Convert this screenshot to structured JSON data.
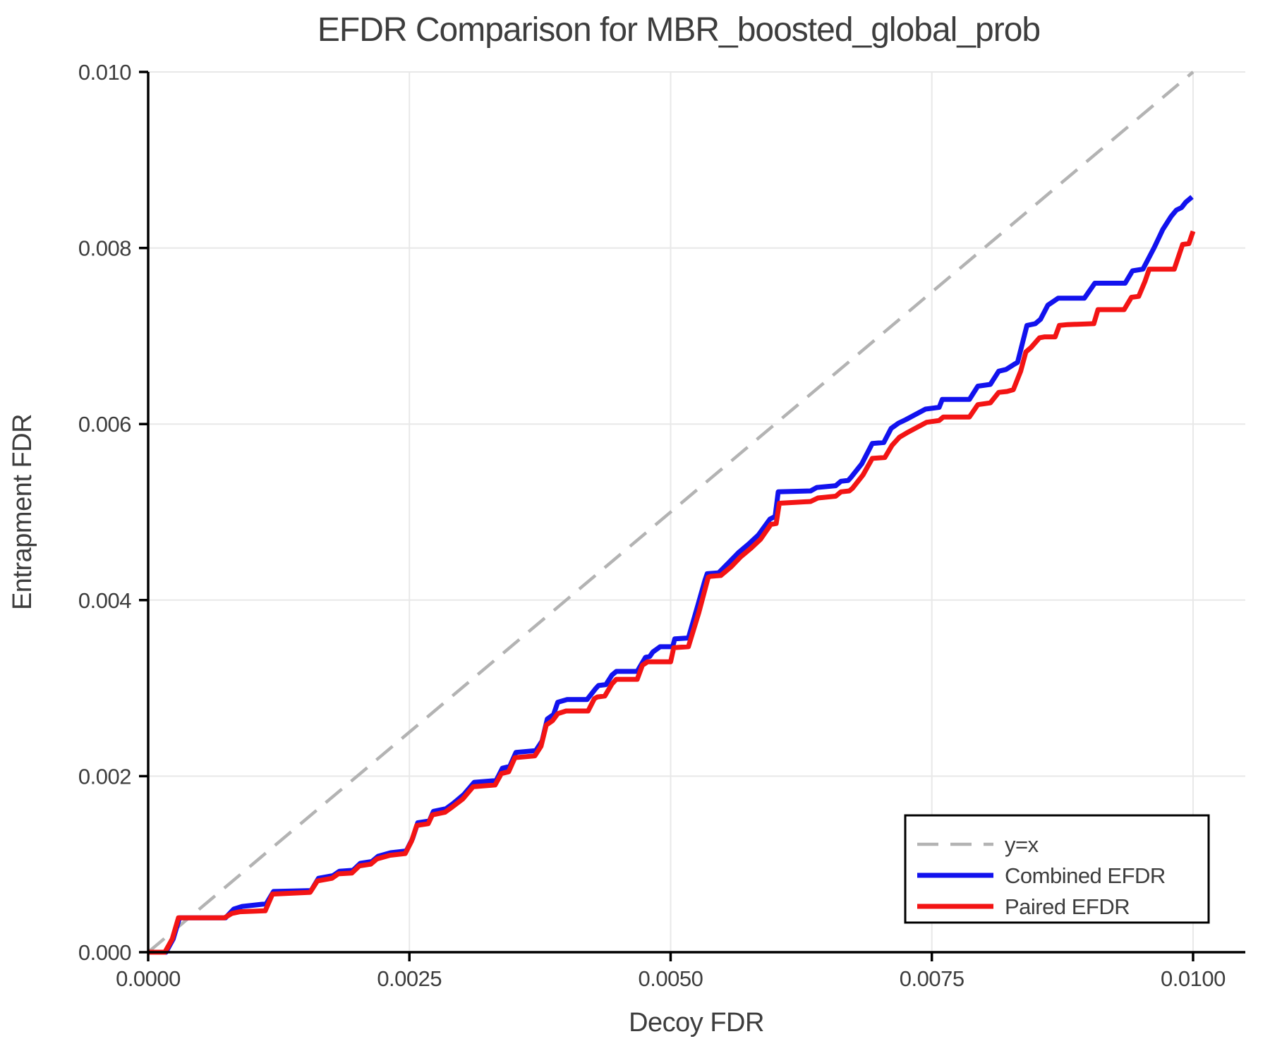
{
  "colors": {
    "background": "#ffffff",
    "text": "#3d3d3d",
    "axis": "#000000",
    "grid": "#e8e8e8",
    "reference_gray": "#b3b3b3",
    "combined_blue": "#1212ee",
    "paired_red": "#f31414"
  },
  "chart_data": {
    "type": "line",
    "title": "EFDR Comparison for MBR_boosted_global_prob",
    "xlabel": "Decoy FDR",
    "ylabel": "Entrapment FDR",
    "xlim": [
      0.0,
      0.0105
    ],
    "ylim": [
      0.0,
      0.01
    ],
    "grid": true,
    "xticks": {
      "values": [
        0.0,
        0.0025,
        0.005,
        0.0075,
        0.01
      ],
      "labels": [
        "0.0000",
        "0.0025",
        "0.0050",
        "0.0075",
        "0.0100"
      ]
    },
    "yticks": {
      "values": [
        0.0,
        0.002,
        0.004,
        0.006,
        0.008,
        0.01
      ],
      "labels": [
        "0.000",
        "0.002",
        "0.004",
        "0.006",
        "0.008",
        "0.010"
      ]
    },
    "legend": {
      "position": "lower right",
      "entries": [
        {
          "label": "y=x",
          "color": "#b3b3b3",
          "dash": "30 17",
          "width": 4.5
        },
        {
          "label": "Combined EFDR",
          "color": "#1212ee",
          "dash": "",
          "width": 7
        },
        {
          "label": "Paired EFDR",
          "color": "#f31414",
          "dash": "",
          "width": 7
        }
      ]
    },
    "series": [
      {
        "name": "y=x",
        "color": "#b3b3b3",
        "width": 4.5,
        "dash": "30 17",
        "points": [
          [
            0.0,
            0.0
          ],
          [
            0.01,
            0.01
          ]
        ]
      },
      {
        "name": "Combined EFDR",
        "color": "#1212ee",
        "width": 7,
        "dash": "",
        "points": [
          [
            0.0,
            0.0
          ],
          [
            0.00017,
            0.0
          ],
          [
            0.00024,
            0.00015
          ],
          [
            0.0003,
            0.00039
          ],
          [
            0.00074,
            0.00039
          ],
          [
            0.00082,
            0.00049
          ],
          [
            0.0009,
            0.00052
          ],
          [
            0.00113,
            0.00055
          ],
          [
            0.0012,
            0.00069
          ],
          [
            0.00156,
            0.0007
          ],
          [
            0.00163,
            0.00084
          ],
          [
            0.00177,
            0.00087
          ],
          [
            0.00183,
            0.00092
          ],
          [
            0.00196,
            0.00093
          ],
          [
            0.00203,
            0.00101
          ],
          [
            0.00214,
            0.00103
          ],
          [
            0.0022,
            0.00109
          ],
          [
            0.00232,
            0.00113
          ],
          [
            0.00247,
            0.00115
          ],
          [
            0.00253,
            0.00129
          ],
          [
            0.00258,
            0.00147
          ],
          [
            0.00269,
            0.00149
          ],
          [
            0.00273,
            0.0016
          ],
          [
            0.00285,
            0.00163
          ],
          [
            0.00292,
            0.00169
          ],
          [
            0.00302,
            0.00179
          ],
          [
            0.00312,
            0.00193
          ],
          [
            0.00333,
            0.00195
          ],
          [
            0.00339,
            0.00209
          ],
          [
            0.00346,
            0.00211
          ],
          [
            0.00352,
            0.00227
          ],
          [
            0.00371,
            0.00229
          ],
          [
            0.00377,
            0.0024
          ],
          [
            0.00382,
            0.00265
          ],
          [
            0.00388,
            0.0027
          ],
          [
            0.00392,
            0.00284
          ],
          [
            0.00401,
            0.00287
          ],
          [
            0.0042,
            0.00287
          ],
          [
            0.00428,
            0.00299
          ],
          [
            0.00431,
            0.00303
          ],
          [
            0.00438,
            0.00304
          ],
          [
            0.00444,
            0.00315
          ],
          [
            0.00448,
            0.00319
          ],
          [
            0.00468,
            0.00319
          ],
          [
            0.00476,
            0.00335
          ],
          [
            0.0048,
            0.00336
          ],
          [
            0.00483,
            0.00341
          ],
          [
            0.0049,
            0.00347
          ],
          [
            0.00502,
            0.00347
          ],
          [
            0.00504,
            0.00356
          ],
          [
            0.00517,
            0.00357
          ],
          [
            0.00526,
            0.00394
          ],
          [
            0.00533,
            0.00423
          ],
          [
            0.00535,
            0.0043
          ],
          [
            0.00546,
            0.00431
          ],
          [
            0.00556,
            0.00443
          ],
          [
            0.00565,
            0.00454
          ],
          [
            0.00575,
            0.00464
          ],
          [
            0.00584,
            0.00474
          ],
          [
            0.00595,
            0.00492
          ],
          [
            0.006,
            0.00495
          ],
          [
            0.00603,
            0.00523
          ],
          [
            0.00634,
            0.00524
          ],
          [
            0.0064,
            0.00528
          ],
          [
            0.00658,
            0.0053
          ],
          [
            0.00663,
            0.00535
          ],
          [
            0.0067,
            0.00536
          ],
          [
            0.00673,
            0.0054
          ],
          [
            0.00683,
            0.00555
          ],
          [
            0.00693,
            0.00578
          ],
          [
            0.00704,
            0.00579
          ],
          [
            0.00711,
            0.00595
          ],
          [
            0.00718,
            0.00601
          ],
          [
            0.00725,
            0.00605
          ],
          [
            0.00744,
            0.00617
          ],
          [
            0.00757,
            0.00619
          ],
          [
            0.0076,
            0.00628
          ],
          [
            0.00786,
            0.00628
          ],
          [
            0.00794,
            0.00643
          ],
          [
            0.00806,
            0.00645
          ],
          [
            0.00814,
            0.0066
          ],
          [
            0.00821,
            0.00662
          ],
          [
            0.00829,
            0.00668
          ],
          [
            0.00832,
            0.0067
          ],
          [
            0.00841,
            0.00712
          ],
          [
            0.00849,
            0.00714
          ],
          [
            0.00854,
            0.00719
          ],
          [
            0.00861,
            0.00735
          ],
          [
            0.00871,
            0.00743
          ],
          [
            0.00896,
            0.00743
          ],
          [
            0.00906,
            0.0076
          ],
          [
            0.00935,
            0.0076
          ],
          [
            0.00942,
            0.00774
          ],
          [
            0.00952,
            0.00776
          ],
          [
            0.00963,
            0.00801
          ],
          [
            0.00971,
            0.00821
          ],
          [
            0.00979,
            0.00836
          ],
          [
            0.00984,
            0.00843
          ],
          [
            0.00989,
            0.00846
          ],
          [
            0.00993,
            0.00852
          ],
          [
            0.00999,
            0.00858
          ]
        ]
      },
      {
        "name": "Paired EFDR",
        "color": "#f31414",
        "width": 7,
        "dash": "",
        "points": [
          [
            0.0,
            0.0
          ],
          [
            0.00016,
            0.0
          ],
          [
            0.00023,
            0.00015
          ],
          [
            0.00029,
            0.00039
          ],
          [
            0.00073,
            0.00039
          ],
          [
            0.0008,
            0.00044
          ],
          [
            0.00088,
            0.00046
          ],
          [
            0.00112,
            0.00047
          ],
          [
            0.00119,
            0.00066
          ],
          [
            0.00155,
            0.00068
          ],
          [
            0.00162,
            0.00081
          ],
          [
            0.00176,
            0.00084
          ],
          [
            0.00182,
            0.00089
          ],
          [
            0.00195,
            0.0009
          ],
          [
            0.00202,
            0.00098
          ],
          [
            0.00213,
            0.001
          ],
          [
            0.00219,
            0.00106
          ],
          [
            0.00231,
            0.0011
          ],
          [
            0.00246,
            0.00112
          ],
          [
            0.00252,
            0.00126
          ],
          [
            0.00257,
            0.00144
          ],
          [
            0.00268,
            0.00146
          ],
          [
            0.00272,
            0.00156
          ],
          [
            0.00284,
            0.00159
          ],
          [
            0.00291,
            0.00165
          ],
          [
            0.00301,
            0.00174
          ],
          [
            0.00311,
            0.00188
          ],
          [
            0.00332,
            0.0019
          ],
          [
            0.00338,
            0.00203
          ],
          [
            0.00345,
            0.00205
          ],
          [
            0.00351,
            0.00221
          ],
          [
            0.0037,
            0.00223
          ],
          [
            0.00376,
            0.00234
          ],
          [
            0.00381,
            0.00258
          ],
          [
            0.00387,
            0.00263
          ],
          [
            0.00392,
            0.00271
          ],
          [
            0.004,
            0.00274
          ],
          [
            0.00421,
            0.00274
          ],
          [
            0.00427,
            0.00288
          ],
          [
            0.0043,
            0.0029
          ],
          [
            0.00437,
            0.00291
          ],
          [
            0.00444,
            0.00305
          ],
          [
            0.00448,
            0.0031
          ],
          [
            0.00468,
            0.0031
          ],
          [
            0.00473,
            0.00326
          ],
          [
            0.00478,
            0.0033
          ],
          [
            0.005,
            0.0033
          ],
          [
            0.00503,
            0.00346
          ],
          [
            0.00517,
            0.00347
          ],
          [
            0.00527,
            0.00386
          ],
          [
            0.00536,
            0.00426
          ],
          [
            0.00538,
            0.00427
          ],
          [
            0.00548,
            0.00428
          ],
          [
            0.00558,
            0.00438
          ],
          [
            0.00567,
            0.00449
          ],
          [
            0.00577,
            0.00459
          ],
          [
            0.00586,
            0.00469
          ],
          [
            0.00596,
            0.00486
          ],
          [
            0.00601,
            0.00487
          ],
          [
            0.00604,
            0.0051
          ],
          [
            0.00634,
            0.00512
          ],
          [
            0.00641,
            0.00516
          ],
          [
            0.00658,
            0.00518
          ],
          [
            0.00663,
            0.00523
          ],
          [
            0.00671,
            0.00524
          ],
          [
            0.00674,
            0.00527
          ],
          [
            0.00684,
            0.00542
          ],
          [
            0.00693,
            0.00561
          ],
          [
            0.00705,
            0.00562
          ],
          [
            0.00712,
            0.00576
          ],
          [
            0.00719,
            0.00585
          ],
          [
            0.00726,
            0.0059
          ],
          [
            0.00745,
            0.00602
          ],
          [
            0.00757,
            0.00604
          ],
          [
            0.00761,
            0.00608
          ],
          [
            0.00786,
            0.00608
          ],
          [
            0.00794,
            0.00622
          ],
          [
            0.00806,
            0.00624
          ],
          [
            0.00814,
            0.00636
          ],
          [
            0.00822,
            0.00637
          ],
          [
            0.00828,
            0.00639
          ],
          [
            0.00835,
            0.0066
          ],
          [
            0.0084,
            0.00682
          ],
          [
            0.00845,
            0.00687
          ],
          [
            0.00853,
            0.00698
          ],
          [
            0.00858,
            0.00699
          ],
          [
            0.00868,
            0.00699
          ],
          [
            0.00872,
            0.00712
          ],
          [
            0.0088,
            0.00713
          ],
          [
            0.00905,
            0.00714
          ],
          [
            0.00909,
            0.0073
          ],
          [
            0.00934,
            0.0073
          ],
          [
            0.00941,
            0.00744
          ],
          [
            0.00948,
            0.00745
          ],
          [
            0.00954,
            0.00762
          ],
          [
            0.00958,
            0.00776
          ],
          [
            0.00982,
            0.00776
          ],
          [
            0.0099,
            0.00804
          ],
          [
            0.00996,
            0.00805
          ],
          [
            0.01,
            0.00819
          ]
        ]
      }
    ]
  }
}
